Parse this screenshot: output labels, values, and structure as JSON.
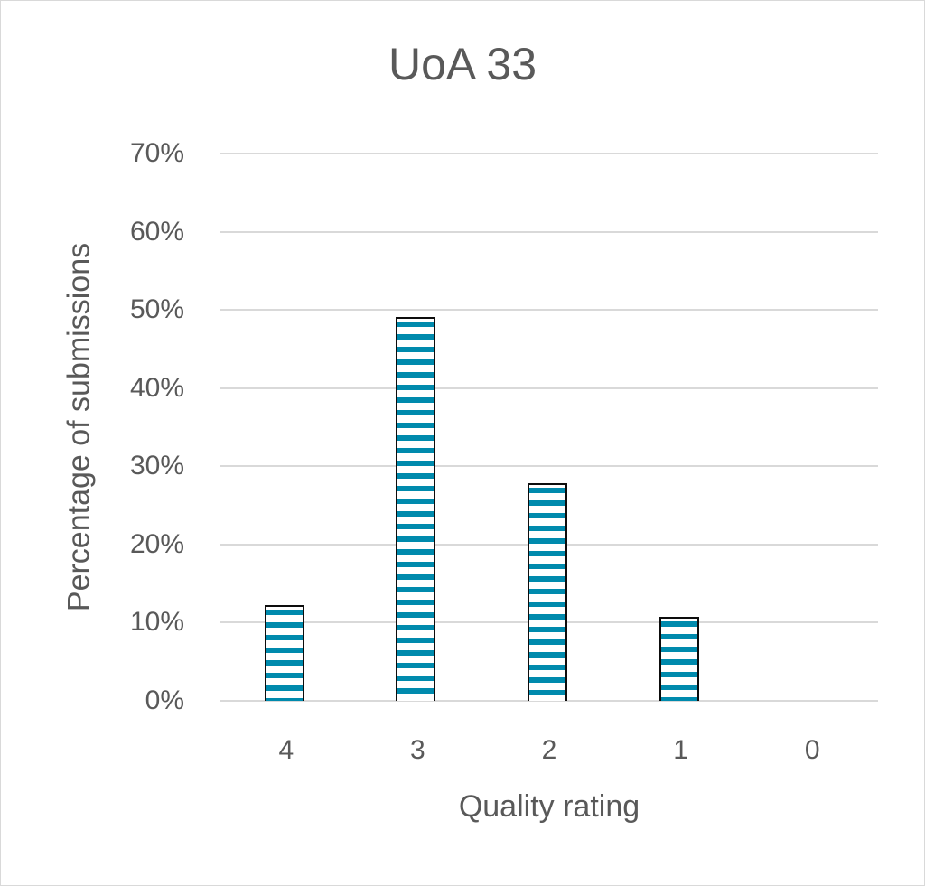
{
  "chart_data": {
    "type": "bar",
    "title": "UoA 33",
    "xlabel": "Quality rating",
    "ylabel": "Percentage of submissions",
    "categories": [
      "4",
      "3",
      "2",
      "1",
      "0"
    ],
    "values": [
      12.2,
      49.1,
      27.8,
      10.7,
      0
    ],
    "ylim": [
      0,
      70
    ],
    "yticks": [
      "0%",
      "10%",
      "20%",
      "30%",
      "40%",
      "50%",
      "60%",
      "70%"
    ],
    "grid": true,
    "legend": "none",
    "bar_color": "#008aad",
    "bar_pattern": "horizontal stripes",
    "bar_outline": "#0d0d0d"
  }
}
